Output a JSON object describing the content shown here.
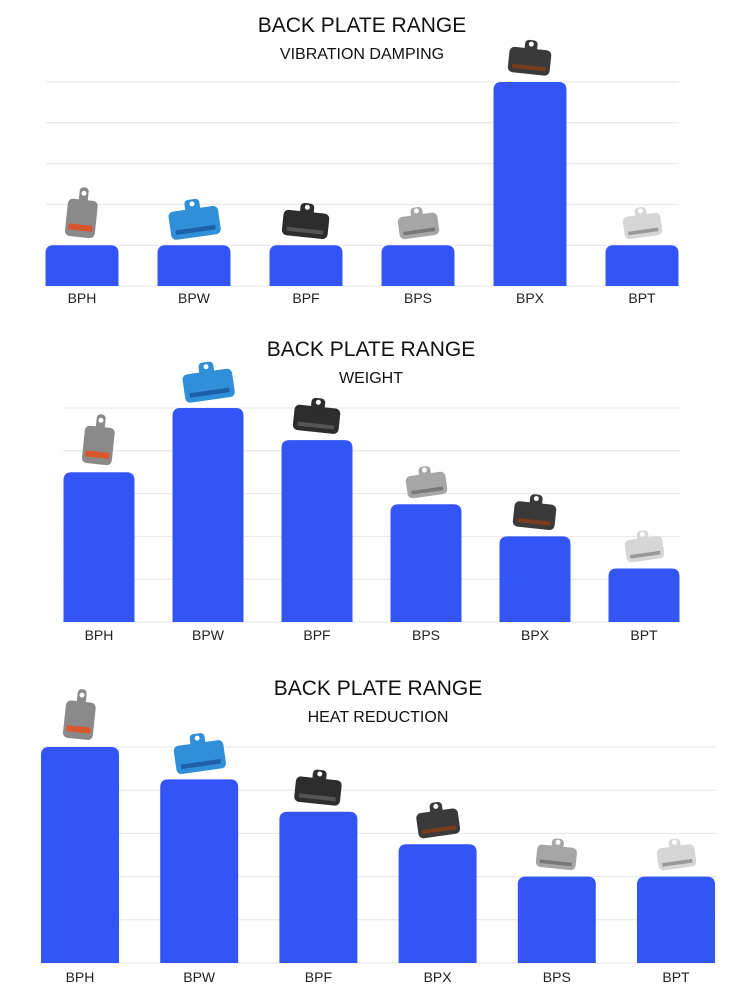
{
  "colors": {
    "bar": "#3355f5",
    "grid": "#e6e6e6"
  },
  "chart_data": [
    {
      "type": "bar",
      "title": "BACK PLATE RANGE",
      "subtitle": "VIBRATION DAMPING",
      "categories": [
        "BPH",
        "BPW",
        "BPF",
        "BPS",
        "BPX",
        "BPT"
      ],
      "values": [
        1,
        1,
        1,
        1,
        5,
        1
      ],
      "ylim": [
        0,
        5
      ],
      "grid": true,
      "y_tick_labels_shown": false,
      "product_images": [
        "bph-pad",
        "bpw-pad",
        "bpf-pad",
        "bps-pad",
        "bpx-pad",
        "bpt-pad"
      ]
    },
    {
      "type": "bar",
      "title": "BACK PLATE RANGE",
      "subtitle": "WEIGHT",
      "categories": [
        "BPH",
        "BPW",
        "BPF",
        "BPS",
        "BPX",
        "BPT"
      ],
      "values": [
        3.5,
        5,
        4.25,
        2.75,
        2,
        1.25
      ],
      "ylim": [
        0,
        5
      ],
      "grid": true,
      "y_tick_labels_shown": false,
      "product_images": [
        "bph-pad",
        "bpw-pad",
        "bpf-pad",
        "bps-pad",
        "bpx-pad",
        "bpt-pad"
      ]
    },
    {
      "type": "bar",
      "title": "BACK PLATE RANGE",
      "subtitle": "HEAT REDUCTION",
      "categories": [
        "BPH",
        "BPW",
        "BPF",
        "BPX",
        "BPS",
        "BPT"
      ],
      "values": [
        5,
        4.25,
        3.5,
        2.75,
        2,
        2
      ],
      "ylim": [
        0,
        5
      ],
      "grid": true,
      "y_tick_labels_shown": false,
      "product_images": [
        "bph-pad",
        "bpw-pad",
        "bpf-pad",
        "bpx-pad",
        "bps-pad",
        "bpt-pad"
      ]
    }
  ]
}
